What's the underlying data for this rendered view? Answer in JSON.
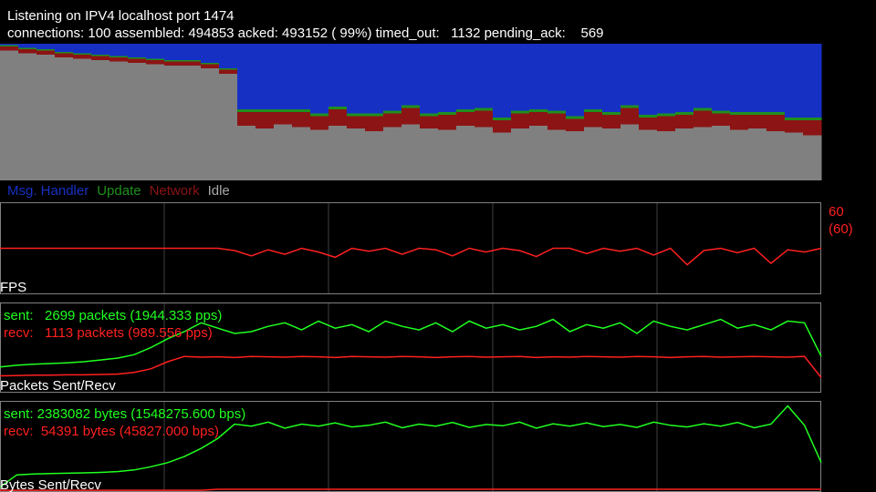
{
  "header": {
    "line1": "Listening on IPV4 localhost port 1474",
    "line2": "connections: 100 assembled: 494853 acked: 493152 ( 99%) timed_out:   1132 pending_ack:    569"
  },
  "chart_data": [
    {
      "type": "stacked-bar",
      "ylim": [
        0,
        100
      ],
      "series": [
        {
          "name": "Msg. Handler",
          "color": "#1730c4",
          "values": [
            1,
            3,
            4,
            6,
            7,
            8,
            9,
            10,
            11,
            12,
            12,
            14,
            18,
            48,
            48,
            48,
            48,
            51,
            46,
            51,
            51,
            49,
            45,
            51,
            50,
            48,
            47,
            54,
            49,
            48,
            49,
            53,
            48,
            50,
            45,
            52,
            51,
            50,
            47,
            49,
            50,
            50,
            50,
            54,
            54
          ]
        },
        {
          "name": "Update",
          "color": "#1f8f1f",
          "values": [
            1,
            1,
            1,
            1,
            1,
            1,
            1,
            1,
            1,
            1,
            1,
            1,
            1,
            2,
            2,
            2,
            2,
            2,
            2,
            2,
            2,
            2,
            2,
            2,
            2,
            2,
            2,
            2,
            2,
            2,
            2,
            2,
            2,
            2,
            2,
            2,
            2,
            2,
            2,
            2,
            2,
            2,
            2,
            2,
            2
          ]
        },
        {
          "name": "Network",
          "color": "#8c1414",
          "values": [
            3,
            3,
            3,
            3,
            3,
            3,
            3,
            3,
            3,
            3,
            3,
            3,
            3,
            10,
            12,
            9,
            11,
            10,
            12,
            9,
            11,
            10,
            12,
            9,
            11,
            10,
            12,
            9,
            11,
            10,
            12,
            9,
            11,
            10,
            12,
            9,
            11,
            10,
            12,
            9,
            11,
            10,
            12,
            9,
            11
          ]
        },
        {
          "name": "Idle",
          "color": "#808080",
          "values": [
            95,
            93,
            92,
            90,
            89,
            88,
            87,
            86,
            85,
            84,
            84,
            82,
            78,
            40,
            38,
            41,
            39,
            37,
            40,
            38,
            36,
            39,
            41,
            38,
            37,
            40,
            39,
            35,
            38,
            40,
            37,
            36,
            39,
            38,
            41,
            37,
            36,
            38,
            39,
            40,
            37,
            38,
            36,
            35,
            33
          ]
        }
      ]
    },
    {
      "type": "line",
      "label": "FPS",
      "value_text": "60",
      "value_text2": "(60)",
      "ylim": [
        0,
        120
      ],
      "series": [
        {
          "color": "#ff2020",
          "values": [
            60,
            60,
            60,
            60,
            60,
            60,
            60,
            60,
            60,
            60,
            60,
            60,
            60,
            60,
            57,
            50,
            58,
            52,
            60,
            55,
            48,
            60,
            56,
            60,
            52,
            60,
            58,
            50,
            60,
            55,
            60,
            57,
            49,
            60,
            60,
            53,
            60,
            56,
            60,
            51,
            60,
            38,
            57,
            60,
            54,
            60,
            40,
            58,
            55,
            60
          ]
        }
      ]
    },
    {
      "type": "line",
      "label": "Packets Sent/Recv",
      "ylim": [
        0,
        2500
      ],
      "series": [
        {
          "name": "sent:   2699 packets (1944.333 pps)",
          "color": "#20ff20",
          "values": [
            700,
            750,
            780,
            800,
            820,
            850,
            900,
            950,
            1050,
            1250,
            1500,
            1700,
            1950,
            1800,
            1650,
            1700,
            1850,
            1950,
            1750,
            2000,
            1800,
            1900,
            1700,
            2000,
            1850,
            1750,
            1950,
            1700,
            2000,
            1800,
            1900,
            1750,
            1850,
            2050,
            1700,
            1900,
            1800,
            1950,
            1650,
            2000,
            1850,
            1750,
            1900,
            2050,
            1800,
            1900,
            1750,
            2000,
            1950,
            1000
          ]
        },
        {
          "name": "recv:   1113 packets (989.556 pps)",
          "color": "#ff2020",
          "values": [
            450,
            460,
            470,
            470,
            480,
            480,
            490,
            500,
            550,
            650,
            850,
            1000,
            980,
            990,
            970,
            1000,
            990,
            980,
            1000,
            990,
            970,
            1000,
            990,
            980,
            1000,
            990,
            970,
            990,
            1000,
            980,
            990,
            1000,
            970,
            990,
            980,
            1000,
            990,
            980,
            1000,
            990,
            970,
            990,
            1000,
            980,
            990,
            1000,
            990,
            980,
            1000,
            400
          ]
        }
      ]
    },
    {
      "type": "line",
      "label": "Bytes Sent/Recv",
      "ylim": [
        0,
        2200000
      ],
      "series": [
        {
          "name": "sent: 2383082 bytes (1548275.600 bps)",
          "color": "#20ff20",
          "values": [
            100000,
            400000,
            420000,
            430000,
            440000,
            450000,
            460000,
            480000,
            520000,
            600000,
            700000,
            850000,
            1050000,
            1300000,
            1650000,
            1600000,
            1700000,
            1550000,
            1650000,
            1600000,
            1680000,
            1580000,
            1620000,
            1700000,
            1560000,
            1650000,
            1600000,
            1690000,
            1570000,
            1640000,
            1610000,
            1700000,
            1550000,
            1660000,
            1600000,
            1680000,
            1590000,
            1640000,
            1570000,
            1700000,
            1620000,
            1580000,
            1660000,
            1600000,
            1690000,
            1560000,
            1650000,
            2100000,
            1620000,
            700000
          ]
        },
        {
          "name": "recv:  54391 bytes (45827.000 bps)",
          "color": "#ff2020",
          "values": [
            20000,
            20000,
            20000,
            20000,
            20000,
            20000,
            20000,
            20000,
            20000,
            20000,
            20000,
            20000,
            20000,
            45000,
            46000,
            45000,
            44000,
            45000,
            46000,
            45000,
            45000,
            44000,
            46000,
            45000,
            45000,
            46000,
            44000,
            45000,
            45000,
            46000,
            45000,
            44000,
            45000,
            46000,
            45000,
            45000,
            44000,
            46000,
            45000,
            45000,
            46000,
            44000,
            45000,
            45000,
            46000,
            45000,
            44000,
            45000,
            46000,
            45000
          ]
        }
      ]
    }
  ]
}
